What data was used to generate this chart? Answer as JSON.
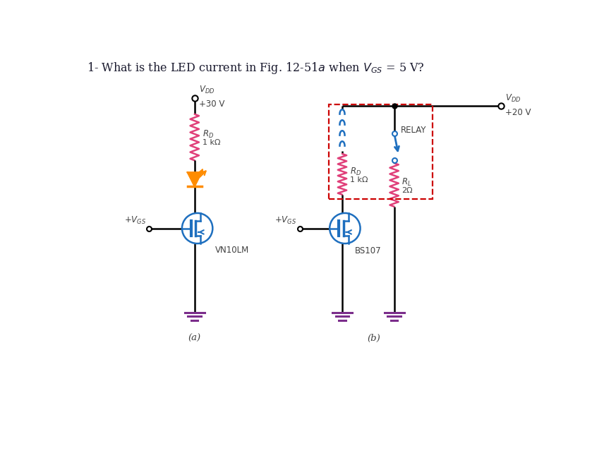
{
  "bg_color": "#ffffff",
  "wire_color": "#000000",
  "resistor_color_pink": "#e0407a",
  "led_color": "#ff8c00",
  "mosfet_color": "#1e6fbf",
  "ground_color": "#7b2d8b",
  "label_color": "#404040",
  "dashed_box_color": "#cc0000",
  "circuit_a": {
    "vdd_label": "$V_{DD}$",
    "vdd_val": "+30 V",
    "rd_label": "$R_D$",
    "rd_val": "1 kΩ",
    "vgs_label": "+$V_{GS}$",
    "mosfet_label": "VN10LM",
    "sub_label": "(a)"
  },
  "circuit_b": {
    "vdd_label": "$V_{DD}$",
    "vdd_val": "+20 V",
    "rd_label": "$R_D$",
    "rd_val": "1 kΩ",
    "rl_label": "$R_L$",
    "rl_val": "2Ω",
    "relay_label": "RELAY",
    "vgs_label": "+$V_{GS}$",
    "mosfet_label": "BS107",
    "sub_label": "(b)"
  },
  "title": "1- What is the LED current in Fig. 12-51$a$ when $V_{GS}$ = 5 V?"
}
